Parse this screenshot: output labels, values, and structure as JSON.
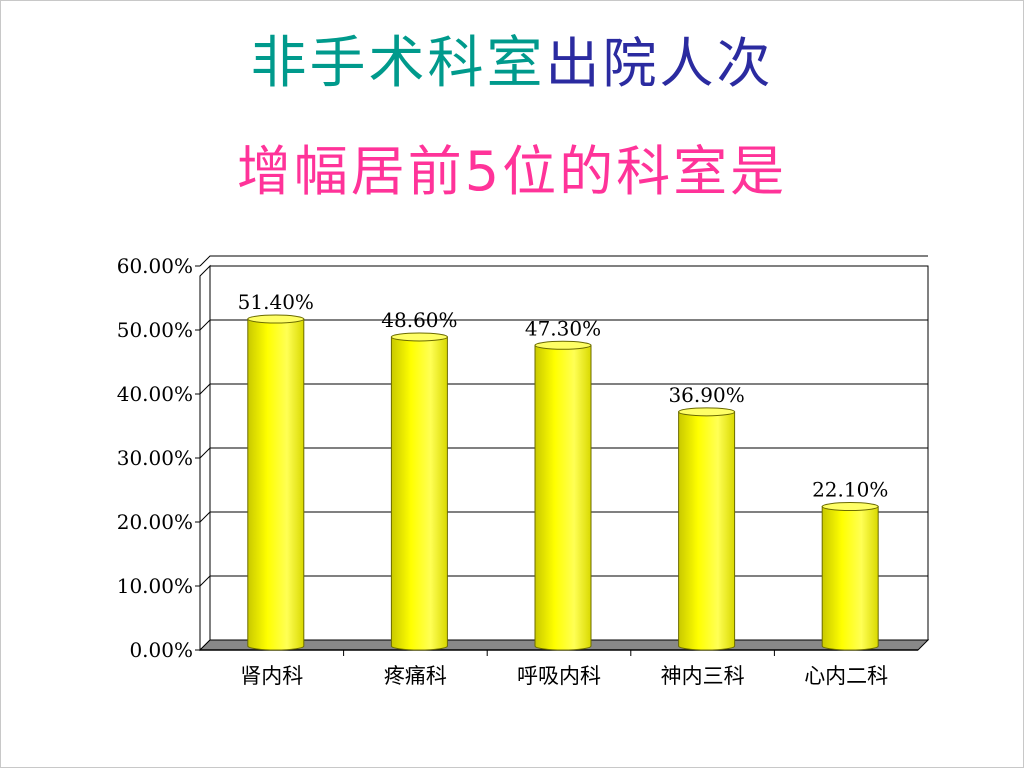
{
  "title": {
    "line1_part1": "非手术科室",
    "line1_part2": "出院人次",
    "line2": "增幅居前5位的科室是"
  },
  "colors": {
    "title_teal": "#009a8c",
    "title_navy": "#2b2ba0",
    "title_pink": "#ff3399",
    "bar_fill": "#ffff00",
    "bar_edge": "#b5b500",
    "floor": "#888888"
  },
  "chart_data": {
    "type": "bar",
    "categories": [
      "肾内科",
      "疼痛科",
      "呼吸内科",
      "神内三科",
      "心内二科"
    ],
    "values": [
      51.4,
      48.6,
      47.3,
      36.9,
      22.1
    ],
    "value_labels": [
      "51.40%",
      "48.60%",
      "47.30%",
      "36.90%",
      "22.10%"
    ],
    "ylim": [
      0,
      60
    ],
    "yticks": [
      0,
      10,
      20,
      30,
      40,
      50,
      60
    ],
    "ytick_labels": [
      "0.00%",
      "10.00%",
      "20.00%",
      "30.00%",
      "40.00%",
      "50.00%",
      "60.00%"
    ],
    "bar_style": "3d-cylinder",
    "grid": true,
    "legend": "none"
  }
}
